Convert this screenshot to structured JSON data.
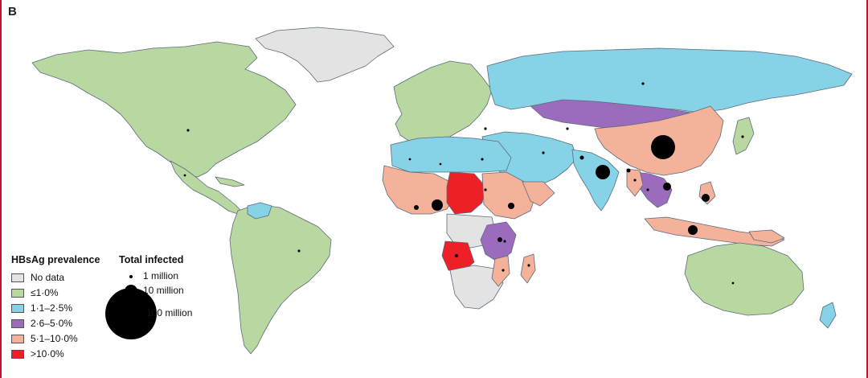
{
  "panel_label": "B",
  "legend": {
    "prevalence_title": "HBsAg prevalence",
    "prevalence_classes": [
      {
        "label": "No data",
        "color": "#e3e3e3"
      },
      {
        "label": "≤1·0%",
        "color": "#b9d8a1"
      },
      {
        "label": "1·1–2·5%",
        "color": "#86d2e6"
      },
      {
        "label": "2·6–5·0%",
        "color": "#9b6cbd"
      },
      {
        "label": "5·1–10·0%",
        "color": "#f5b29a"
      },
      {
        "label": ">10·0%",
        "color": "#ee2027"
      }
    ],
    "infected_title": "Total infected",
    "infected_sizes": [
      {
        "label": "1 million",
        "value_millions": 1
      },
      {
        "label": "10 million",
        "value_millions": 10
      },
      {
        "label": "100 million",
        "value_millions": 100
      }
    ]
  },
  "map": {
    "water_color": "#ffffff",
    "border_color": "#5a6b7a"
  }
}
